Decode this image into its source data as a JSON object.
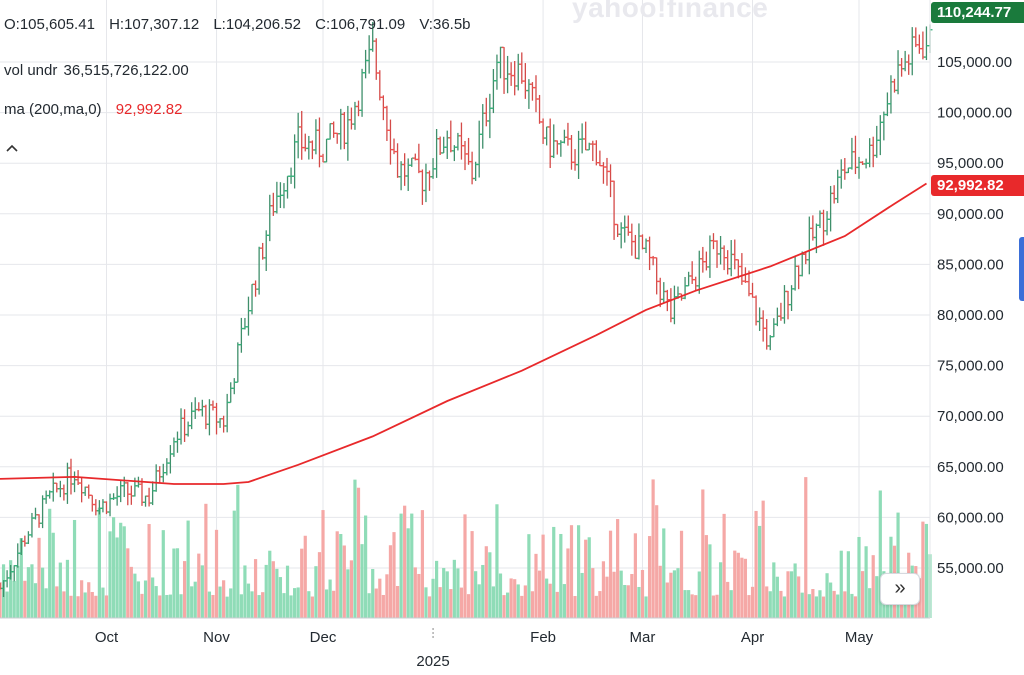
{
  "header": {
    "ohlc": {
      "open": "O:105,605.41",
      "high": "H:107,307.12",
      "low": "L:104,206.52",
      "close": "C:106,791.09",
      "volume": "V:36.5b"
    },
    "vol_label": "vol undr",
    "vol_value": "36,515,726,122.00",
    "ma_label": "ma (200,ma,0)",
    "ma_value": "92,992.82",
    "collapse_icon": "chevron-up-icon"
  },
  "watermark": "yahoo!finance",
  "badges": {
    "last_price": "110,244.77",
    "ma": "92,992.82"
  },
  "scroll_button": {
    "icon": "double-chevron-right-icon",
    "label": "»"
  },
  "colors": {
    "up": "#35b27a",
    "down": "#ef5350",
    "ma": "#e8292b",
    "vol_up": "#8fdcb7",
    "vol_down": "#f5a8a6",
    "price_badge": "#1a7a3c"
  },
  "chart_data": {
    "type": "ohlc",
    "title": "",
    "y_ticks": [
      "55,000.00",
      "60,000.00",
      "65,000.00",
      "70,000.00",
      "75,000.00",
      "80,000.00",
      "85,000.00",
      "90,000.00",
      "95,000.00",
      "100,000.00",
      "105,000.00"
    ],
    "ylim": [
      50000,
      111000
    ],
    "x_ticks": [
      {
        "label": "Oct",
        "date": "2024-10-01"
      },
      {
        "label": "Nov",
        "date": "2024-11-01"
      },
      {
        "label": "Dec",
        "date": "2024-12-01"
      },
      {
        "label": "2025",
        "date": "2025-01-01"
      },
      {
        "label": "Feb",
        "date": "2025-02-01"
      },
      {
        "label": "Mar",
        "date": "2025-03-01"
      },
      {
        "label": "Apr",
        "date": "2025-04-01"
      },
      {
        "label": "May",
        "date": "2025-05-01"
      }
    ],
    "grid": true,
    "price_points": [
      {
        "date": "2024-09-01",
        "close": 53000
      },
      {
        "date": "2024-09-08",
        "close": 58000
      },
      {
        "date": "2024-09-15",
        "close": 62000
      },
      {
        "date": "2024-09-22",
        "close": 64500
      },
      {
        "date": "2024-09-29",
        "close": 61000
      },
      {
        "date": "2024-10-06",
        "close": 62500
      },
      {
        "date": "2024-10-13",
        "close": 62000
      },
      {
        "date": "2024-10-20",
        "close": 68000
      },
      {
        "date": "2024-10-27",
        "close": 70500
      },
      {
        "date": "2024-11-03",
        "close": 69500
      },
      {
        "date": "2024-11-10",
        "close": 81000
      },
      {
        "date": "2024-11-17",
        "close": 91000
      },
      {
        "date": "2024-11-24",
        "close": 97000
      },
      {
        "date": "2024-12-01",
        "close": 96500
      },
      {
        "date": "2024-12-08",
        "close": 99000
      },
      {
        "date": "2024-12-15",
        "close": 106000
      },
      {
        "date": "2024-12-22",
        "close": 94500
      },
      {
        "date": "2024-12-29",
        "close": 93500
      },
      {
        "date": "2025-01-05",
        "close": 98000
      },
      {
        "date": "2025-01-12",
        "close": 94000
      },
      {
        "date": "2025-01-19",
        "close": 105000
      },
      {
        "date": "2025-01-26",
        "close": 104000
      },
      {
        "date": "2025-02-02",
        "close": 97000
      },
      {
        "date": "2025-02-09",
        "close": 96000
      },
      {
        "date": "2025-02-16",
        "close": 96500
      },
      {
        "date": "2025-02-23",
        "close": 88000
      },
      {
        "date": "2025-03-02",
        "close": 86000
      },
      {
        "date": "2025-03-09",
        "close": 80000
      },
      {
        "date": "2025-03-16",
        "close": 84000
      },
      {
        "date": "2025-03-23",
        "close": 87500
      },
      {
        "date": "2025-03-30",
        "close": 82500
      },
      {
        "date": "2025-04-06",
        "close": 77000
      },
      {
        "date": "2025-04-13",
        "close": 84500
      },
      {
        "date": "2025-04-20",
        "close": 89000
      },
      {
        "date": "2025-04-27",
        "close": 94500
      },
      {
        "date": "2025-05-04",
        "close": 96000
      },
      {
        "date": "2025-05-11",
        "close": 103500
      },
      {
        "date": "2025-05-18",
        "close": 106800
      }
    ],
    "ma_points": [
      {
        "date": "2024-09-01",
        "value": 63800
      },
      {
        "date": "2024-09-22",
        "value": 64000
      },
      {
        "date": "2024-10-20",
        "value": 63300
      },
      {
        "date": "2024-11-03",
        "value": 63300
      },
      {
        "date": "2024-11-10",
        "value": 63500
      },
      {
        "date": "2024-11-24",
        "value": 65200
      },
      {
        "date": "2024-12-15",
        "value": 68000
      },
      {
        "date": "2025-01-05",
        "value": 71500
      },
      {
        "date": "2025-01-26",
        "value": 74500
      },
      {
        "date": "2025-02-16",
        "value": 78000
      },
      {
        "date": "2025-03-02",
        "value": 80500
      },
      {
        "date": "2025-03-16",
        "value": 82400
      },
      {
        "date": "2025-04-06",
        "value": 84800
      },
      {
        "date": "2025-04-27",
        "value": 87800
      },
      {
        "date": "2025-05-11",
        "value": 91000
      },
      {
        "date": "2025-05-20",
        "value": 92993
      }
    ],
    "volume_range": [
      0,
      60000000000
    ]
  }
}
